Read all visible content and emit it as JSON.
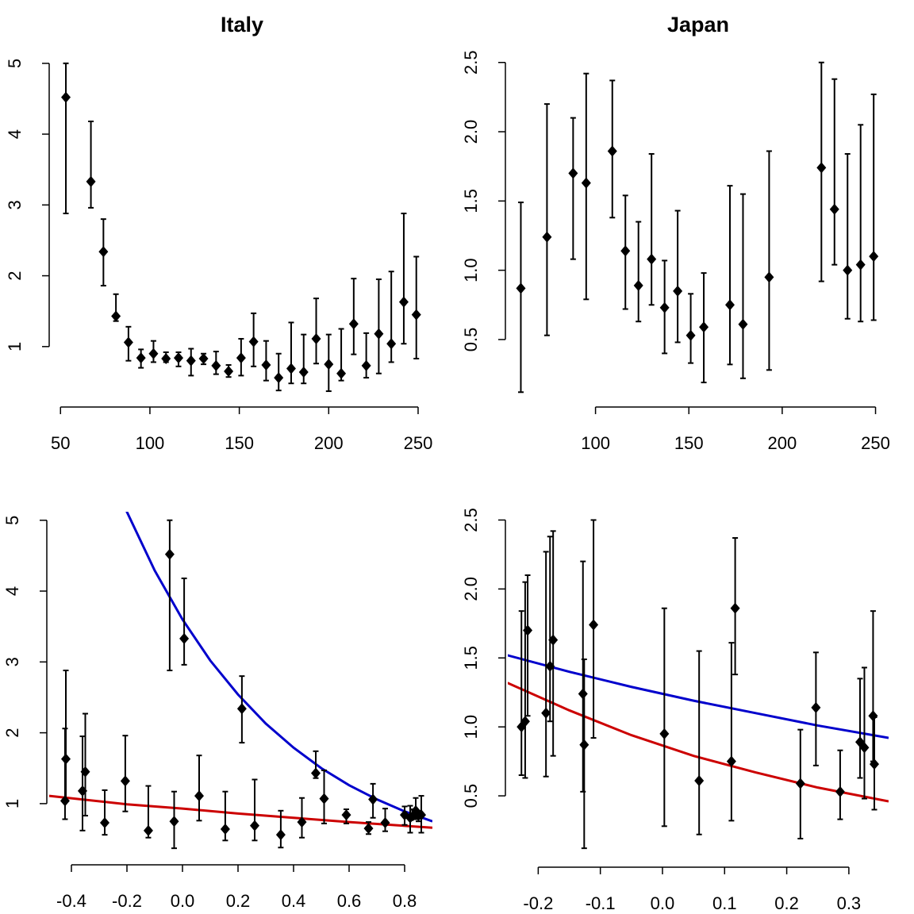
{
  "chart_data": [
    {
      "type": "scatter",
      "title": "Italy",
      "x": [
        53,
        67,
        74,
        81,
        88,
        95,
        102,
        109,
        116,
        123,
        130,
        137,
        144,
        151,
        158,
        165,
        172,
        179,
        186,
        193,
        200,
        207,
        214,
        221,
        228,
        235,
        242,
        249
      ],
      "series": [
        {
          "color": "#000000",
          "values": [
            4.52,
            3.33,
            2.34,
            1.43,
            1.06,
            0.84,
            0.9,
            0.83,
            0.84,
            0.8,
            0.83,
            0.73,
            0.65,
            0.84,
            1.07,
            0.74,
            0.56,
            0.69,
            0.64,
            1.11,
            0.75,
            0.62,
            1.32,
            0.73,
            1.18,
            1.04,
            1.63,
            1.45
          ],
          "lower": [
            2.88,
            2.96,
            1.86,
            1.36,
            0.8,
            0.7,
            0.78,
            0.78,
            0.72,
            0.59,
            0.75,
            0.61,
            0.57,
            0.59,
            0.72,
            0.52,
            0.38,
            0.48,
            0.48,
            0.76,
            0.37,
            0.52,
            0.89,
            0.56,
            0.62,
            0.78,
            1.04,
            0.83
          ],
          "upper": [
            5,
            4.18,
            2.8,
            1.74,
            1.28,
            0.96,
            1.08,
            0.92,
            0.92,
            0.97,
            0.9,
            0.93,
            0.74,
            1.11,
            1.47,
            1.08,
            0.9,
            1.34,
            1.17,
            1.68,
            1.17,
            1.25,
            1.96,
            1.19,
            1.95,
            2.06,
            2.88,
            2.27
          ]
        }
      ],
      "xlim": [
        45,
        258
      ],
      "ylim": [
        0.18,
        5.11
      ],
      "xticks": [
        50,
        100,
        150,
        200,
        250
      ],
      "yticks": [
        1,
        2,
        3,
        4,
        5
      ]
    },
    {
      "type": "scatter",
      "title": "Japan",
      "x": [
        60,
        74,
        88,
        95,
        109,
        116,
        123,
        130,
        137,
        144,
        151,
        158,
        172,
        179,
        193,
        221,
        228,
        235,
        242,
        249
      ],
      "series": [
        {
          "color": "#000000",
          "values": [
            0.87,
            1.24,
            1.7,
            1.63,
            1.86,
            1.14,
            0.89,
            1.08,
            0.73,
            0.85,
            0.53,
            0.59,
            0.75,
            0.61,
            0.95,
            1.74,
            1.44,
            1.0,
            1.04,
            1.1
          ],
          "lower": [
            0.12,
            0.53,
            1.08,
            0.79,
            1.38,
            0.72,
            0.63,
            0.75,
            0.4,
            0.48,
            0.33,
            0.19,
            0.32,
            0.22,
            0.28,
            0.92,
            1.04,
            0.65,
            0.63,
            0.64
          ],
          "upper": [
            1.49,
            2.2,
            2.1,
            2.42,
            2.37,
            1.54,
            1.35,
            1.84,
            1.07,
            1.43,
            0.83,
            0.98,
            1.61,
            1.55,
            1.86,
            2.5,
            2.38,
            1.84,
            2.05,
            2.27
          ]
        }
      ],
      "xlim": [
        53,
        257
      ],
      "ylim": [
        0.03,
        2.55
      ],
      "xticks": [
        100,
        150,
        200,
        250
      ],
      "yticks": [
        0.5,
        {
          "value": 1,
          "label": "1.0"
        },
        1.5,
        {
          "value": 2,
          "label": "2.0"
        },
        2.5
      ]
    },
    {
      "type": "scatter",
      "x": [
        -0.046,
        0.006,
        0.214,
        0.48,
        0.686,
        0.8,
        0.84,
        0.83,
        0.59,
        0.82,
        0.85,
        0.73,
        0.67,
        0.86,
        0.51,
        0.43,
        0.354,
        0.26,
        0.154,
        0.06,
        -0.03,
        -0.123,
        -0.206,
        -0.28,
        -0.36,
        -0.423,
        -0.42,
        -0.35
      ],
      "series": [
        {
          "color": "#000000",
          "values": [
            4.52,
            3.33,
            2.34,
            1.43,
            1.06,
            0.84,
            0.9,
            0.83,
            0.84,
            0.8,
            0.83,
            0.73,
            0.65,
            0.84,
            1.07,
            0.74,
            0.56,
            0.69,
            0.64,
            1.11,
            0.75,
            0.62,
            1.32,
            0.73,
            1.18,
            1.04,
            1.63,
            1.45
          ],
          "lower": [
            2.88,
            2.96,
            1.86,
            1.36,
            0.8,
            0.7,
            0.78,
            0.78,
            0.72,
            0.59,
            0.75,
            0.61,
            0.57,
            0.59,
            0.72,
            0.52,
            0.38,
            0.48,
            0.48,
            0.76,
            0.37,
            0.52,
            0.89,
            0.56,
            0.62,
            0.78,
            1.04,
            0.83
          ],
          "upper": [
            5,
            4.18,
            2.8,
            1.74,
            1.28,
            0.96,
            1.08,
            0.92,
            0.92,
            0.97,
            0.9,
            0.93,
            0.74,
            1.11,
            1.47,
            1.08,
            0.9,
            1.34,
            1.17,
            1.68,
            1.17,
            1.25,
            1.96,
            1.19,
            1.95,
            2.06,
            2.88,
            2.27
          ]
        }
      ],
      "lines": [
        {
          "color": "#0000cc",
          "x": [
            -0.21,
            -0.1,
            0,
            0.1,
            0.2,
            0.3,
            0.4,
            0.5,
            0.6,
            0.7,
            0.8,
            0.9
          ],
          "values": [
            5.2,
            4.29,
            3.6,
            3.02,
            2.54,
            2.13,
            1.79,
            1.5,
            1.26,
            1.06,
            0.89,
            0.75
          ]
        },
        {
          "color": "#cc0000",
          "x": [
            -0.48,
            -0.2,
            0,
            0.2,
            0.4,
            0.6,
            0.9
          ],
          "values": [
            1.11,
            0.99,
            0.93,
            0.86,
            0.8,
            0.74,
            0.66
          ]
        }
      ],
      "xlim": [
        -0.48,
        0.9
      ],
      "ylim": [
        0.17,
        5.12
      ],
      "xticks": [
        -0.4,
        -0.2,
        {
          "value": 0,
          "label": "0.0"
        },
        0.2,
        0.4,
        0.6,
        0.8
      ],
      "yticks": [
        1,
        2,
        3,
        4,
        5
      ]
    },
    {
      "type": "scatter",
      "x": [
        -0.126,
        -0.128,
        -0.217,
        -0.176,
        0.117,
        0.247,
        0.318,
        0.339,
        0.341,
        0.325,
        0.286,
        0.222,
        0.111,
        0.059,
        0.003,
        -0.111,
        -0.181,
        -0.227,
        -0.221,
        -0.1875
      ],
      "series": [
        {
          "color": "#000000",
          "values": [
            0.87,
            1.24,
            1.7,
            1.63,
            1.86,
            1.14,
            0.89,
            1.08,
            0.73,
            0.85,
            0.53,
            0.59,
            0.75,
            0.61,
            0.95,
            1.74,
            1.44,
            1.0,
            1.04,
            1.1
          ],
          "lower": [
            0.12,
            0.53,
            1.08,
            0.79,
            1.38,
            0.72,
            0.63,
            0.75,
            0.4,
            0.48,
            0.33,
            0.19,
            0.32,
            0.22,
            0.28,
            0.92,
            1.04,
            0.65,
            0.63,
            0.64
          ],
          "upper": [
            1.49,
            2.2,
            2.1,
            2.42,
            2.37,
            1.54,
            1.35,
            1.84,
            1.07,
            1.43,
            0.83,
            0.98,
            1.61,
            1.55,
            1.86,
            2.5,
            2.38,
            1.84,
            2.05,
            2.27
          ]
        }
      ],
      "lines": [
        {
          "color": "#0000cc",
          "x": [
            -0.25,
            -0.15,
            -0.05,
            0.05,
            0.15,
            0.25,
            0.364
          ],
          "values": [
            1.52,
            1.4,
            1.29,
            1.19,
            1.1,
            1.01,
            0.92
          ]
        },
        {
          "color": "#cc0000",
          "x": [
            -0.25,
            -0.15,
            -0.05,
            0.05,
            0.15,
            0.25,
            0.364
          ],
          "values": [
            1.32,
            1.12,
            0.94,
            0.79,
            0.67,
            0.56,
            0.46
          ]
        }
      ],
      "xlim": [
        -0.249,
        0.364
      ],
      "ylim": [
        0.0,
        2.56
      ],
      "xticks": [
        -0.2,
        -0.1,
        {
          "value": 0,
          "label": "0.0"
        },
        0.1,
        0.2,
        0.3
      ],
      "yticks": [
        0.5,
        {
          "value": 1,
          "label": "1.0"
        },
        1.5,
        {
          "value": 2,
          "label": "2.0"
        },
        2.5
      ]
    }
  ]
}
